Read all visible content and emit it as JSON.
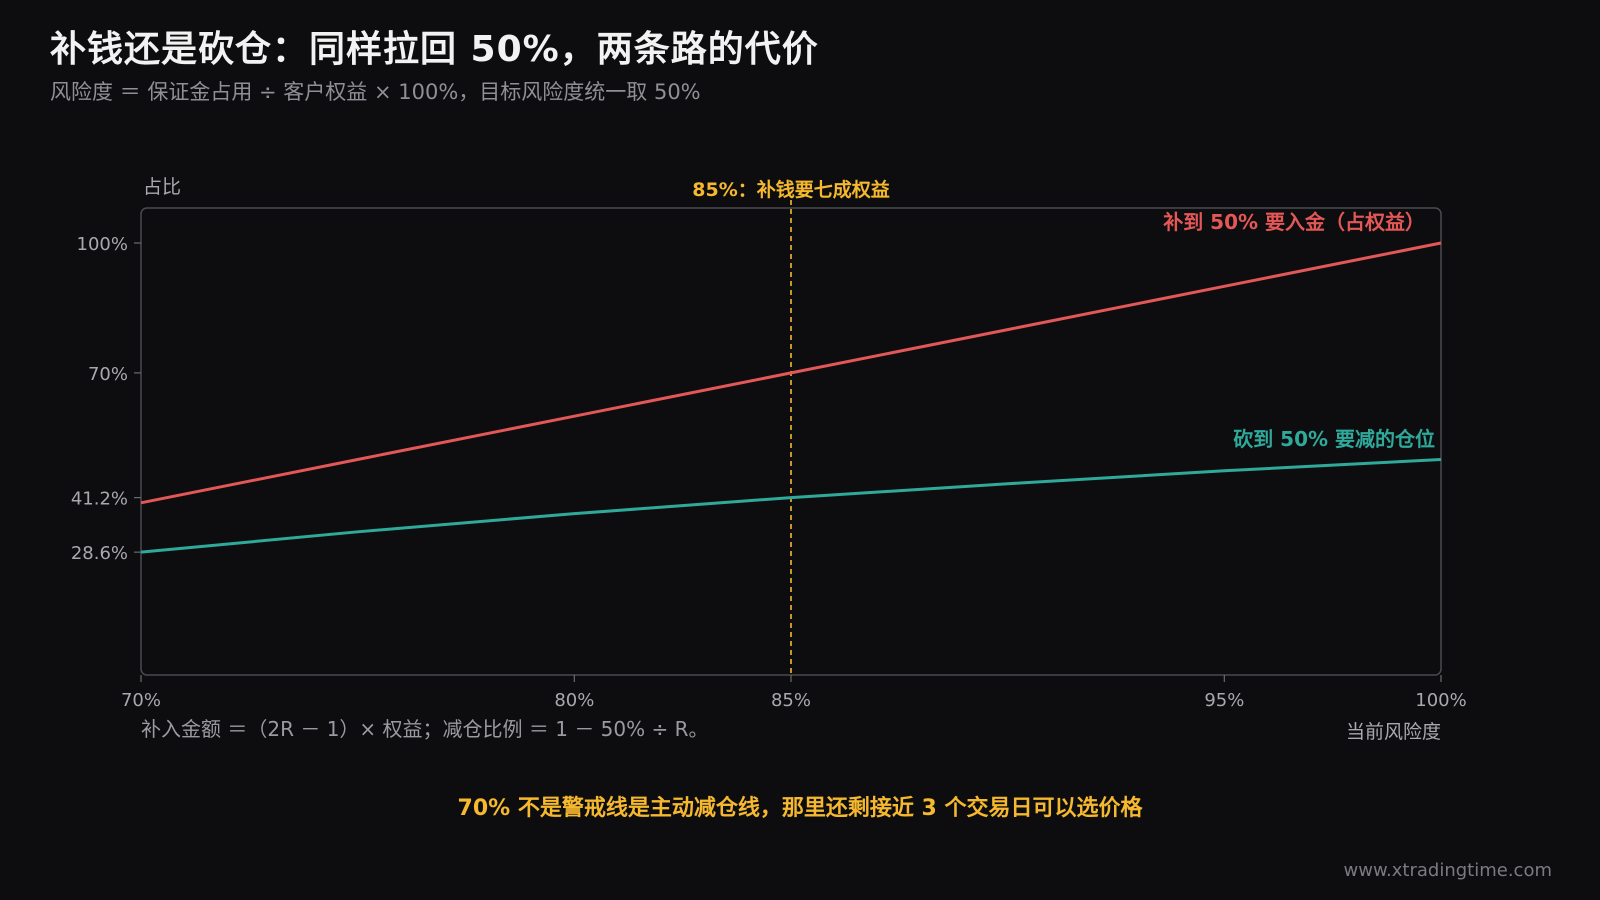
{
  "header": {
    "title": "补钱还是砍仓：同样拉回 50%，两条路的代价",
    "subtitle": "风险度 ＝ 保证金占用 ÷ 客户权益 × 100%，目标风险度统一取 50%"
  },
  "chart_data": {
    "type": "line",
    "title": "",
    "xlabel": "当前风险度",
    "ylabel": "占比",
    "xlim": [
      70,
      100
    ],
    "ylim": [
      0,
      105
    ],
    "x_ticks": [
      {
        "value": 70,
        "label": "70%"
      },
      {
        "value": 80,
        "label": "80%"
      },
      {
        "value": 85,
        "label": "85%"
      },
      {
        "value": 95,
        "label": "95%"
      },
      {
        "value": 100,
        "label": "100%"
      }
    ],
    "y_ticks": [
      {
        "value": 28.6,
        "label": "28.6%"
      },
      {
        "value": 41.2,
        "label": "41.2%"
      },
      {
        "value": 70,
        "label": "70%"
      },
      {
        "value": 100,
        "label": "100%"
      }
    ],
    "grid": false,
    "series": [
      {
        "name": "补到 50% 要入金（占权益）",
        "color": "#e45757",
        "x": [
          70,
          75,
          80,
          85,
          90,
          95,
          100
        ],
        "y": [
          40,
          50,
          60,
          70,
          80,
          90,
          100
        ]
      },
      {
        "name": "砍到 50% 要减的仓位",
        "color": "#2fa99a",
        "x": [
          70,
          75,
          80,
          85,
          90,
          95,
          100
        ],
        "y": [
          28.6,
          33.3,
          37.5,
          41.2,
          44.4,
          47.4,
          50
        ]
      }
    ],
    "annotations": [
      {
        "x": 85,
        "label": "85%：补钱要七成权益",
        "color": "#f5b82e",
        "style": "dashed-vertical"
      }
    ]
  },
  "notes": {
    "formula": "补入金额 ＝（2R － 1）× 权益；减仓比例 ＝ 1 － 50% ÷ R。",
    "footer": "70% 不是警戒线是主动减仓线，那里还剩接近 3 个交易日可以选价格",
    "watermark": "www.xtradingtime.com"
  }
}
